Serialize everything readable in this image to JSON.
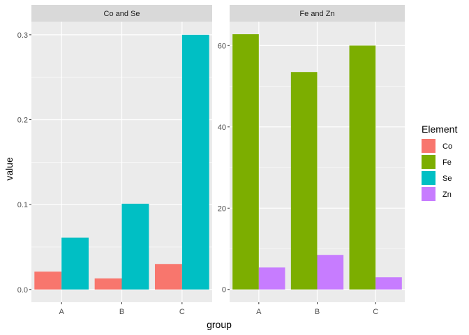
{
  "chart_data": {
    "type": "bar",
    "layout": "facets",
    "xlabel": "group",
    "ylabel": "value",
    "categories": [
      "A",
      "B",
      "C"
    ],
    "legend": {
      "title": "Element",
      "position": "right",
      "entries": [
        {
          "name": "Co",
          "color": "#F8766D"
        },
        {
          "name": "Fe",
          "color": "#7CAE00"
        },
        {
          "name": "Se",
          "color": "#00BFC4"
        },
        {
          "name": "Zn",
          "color": "#C77CFF"
        }
      ]
    },
    "facets": [
      {
        "title": "Co and Se",
        "ylim": [
          -0.015,
          0.3155
        ],
        "yticks": [
          0.0,
          0.1,
          0.2,
          0.3
        ],
        "ytick_labels": [
          "0.0",
          "0.1",
          "0.2",
          "0.3"
        ],
        "series": [
          {
            "name": "Co",
            "color": "#F8766D",
            "values": [
              0.021,
              0.013,
              0.03
            ]
          },
          {
            "name": "Se",
            "color": "#00BFC4",
            "values": [
              0.061,
              0.101,
              0.3
            ]
          }
        ]
      },
      {
        "title": "Fe and Zn",
        "ylim": [
          -3.14,
          65.9
        ],
        "yticks": [
          0,
          20,
          40,
          60
        ],
        "ytick_labels": [
          "0",
          "20",
          "40",
          "60"
        ],
        "series": [
          {
            "name": "Fe",
            "color": "#7CAE00",
            "values": [
              62.8,
              53.5,
              60.0
            ]
          },
          {
            "name": "Zn",
            "color": "#C77CFF",
            "values": [
              5.4,
              8.5,
              3.0
            ]
          }
        ]
      }
    ],
    "grid": true
  }
}
